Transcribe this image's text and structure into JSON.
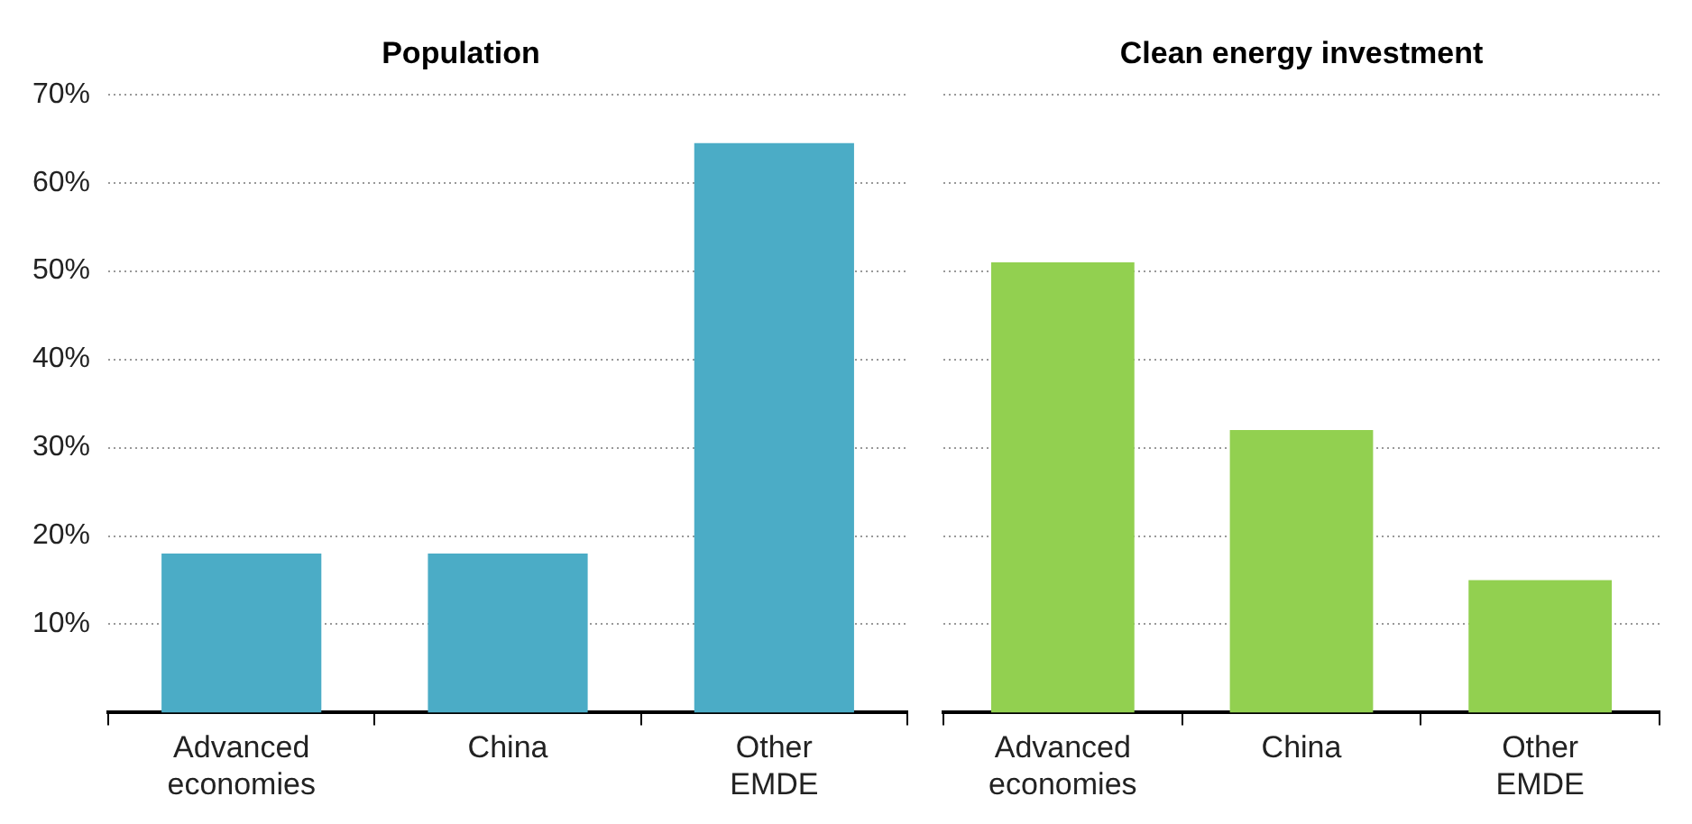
{
  "chart_data": [
    {
      "type": "bar",
      "title": "Population",
      "categories": [
        "Advanced economies",
        "China",
        "Other EMDE"
      ],
      "values": [
        18,
        18,
        64.5
      ],
      "color": "#4bacc6",
      "ylim": [
        0,
        70
      ],
      "yticks": [
        {
          "value": 10,
          "label": "10%"
        },
        {
          "value": 20,
          "label": "20%"
        },
        {
          "value": 30,
          "label": "30%"
        },
        {
          "value": 40,
          "label": "40%"
        },
        {
          "value": 50,
          "label": "50%"
        },
        {
          "value": 60,
          "label": "60%"
        },
        {
          "value": 70,
          "label": "70%"
        }
      ],
      "grid": "y"
    },
    {
      "type": "bar",
      "title": "Clean energy investment",
      "categories": [
        "Advanced economies",
        "China",
        "Other EMDE"
      ],
      "values": [
        51,
        32,
        15
      ],
      "color": "#92d050",
      "ylim": [
        0,
        70
      ],
      "yticks": [
        10,
        20,
        30,
        40,
        50,
        60,
        70
      ],
      "grid": "y",
      "tick_labels": "x"
    }
  ]
}
